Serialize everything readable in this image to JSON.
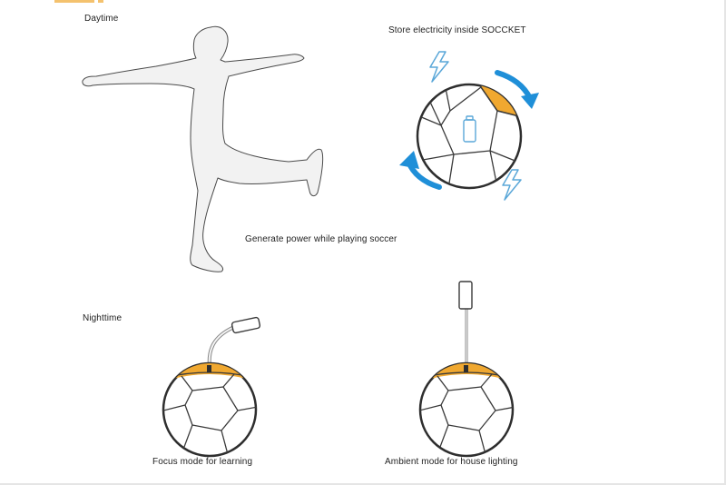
{
  "sections": {
    "daytime": {
      "heading": "Daytime",
      "caption_kick": "Generate power while playing soccer",
      "caption_store": "Store electricity inside SOCCKET"
    },
    "nighttime": {
      "heading": "Nighttime",
      "caption_focus": "Focus mode for learning",
      "caption_ambient": "Ambient mode for house lighting"
    }
  },
  "colors": {
    "silhouette_fill": "#f2f2f2",
    "outline": "#3a3a3a",
    "charge_panel": "#f0a830",
    "rotation_arrow": "#1f8fd8",
    "lightning": "#5aa7d8"
  },
  "icons": [
    "person-kicking-silhouette",
    "soccer-ball",
    "rotation-arrow",
    "lightning-bolt-icon",
    "battery-icon",
    "lamp-head"
  ]
}
